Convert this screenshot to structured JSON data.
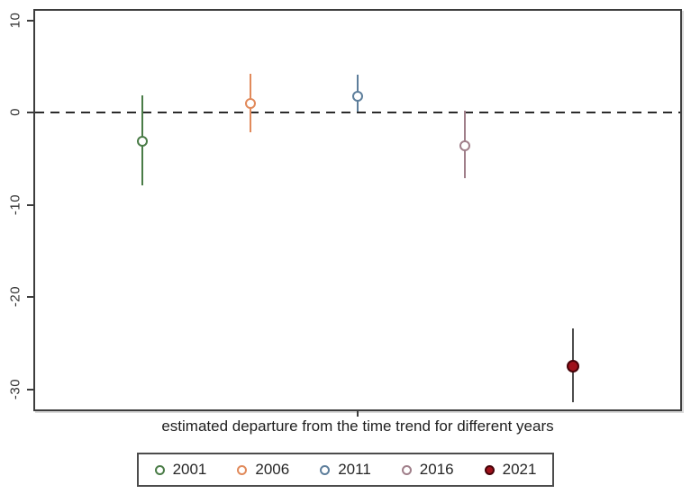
{
  "chart_data": {
    "type": "scatter",
    "subtype": "coefficient-plot",
    "title": "",
    "xlabel": "estimated departure from the time trend for different years",
    "ylabel": "",
    "ylim": [
      -32.2,
      11.0
    ],
    "yticks": [
      10,
      0,
      -10,
      -20,
      -30
    ],
    "reference_line": 0,
    "reference_line_style": "dashed-black",
    "grid": false,
    "legend_position": "bottom-center",
    "categories": [
      "2001",
      "2006",
      "2011",
      "2016",
      "2021"
    ],
    "series": [
      {
        "name": "2001",
        "slot": 1,
        "estimate": -3.1,
        "ci_low": -7.9,
        "ci_high": 1.9,
        "color": "#4a7c47",
        "line_color": "#4a7c47",
        "marker": "hollow-circle",
        "marker_edge": "#4a7c47",
        "marker_fill": "#ffffff"
      },
      {
        "name": "2006",
        "slot": 2,
        "estimate": 1.0,
        "ci_low": -2.1,
        "ci_high": 4.2,
        "color": "#e18a5b",
        "line_color": "#e18a5b",
        "marker": "hollow-circle",
        "marker_edge": "#e18a5b",
        "marker_fill": "#ffffff"
      },
      {
        "name": "2011",
        "slot": 3,
        "estimate": 1.8,
        "ci_low": 0.1,
        "ci_high": 4.1,
        "color": "#5d7e9b",
        "line_color": "#5d7e9b",
        "marker": "hollow-circle",
        "marker_edge": "#5d7e9b",
        "marker_fill": "#ffffff"
      },
      {
        "name": "2016",
        "slot": 4,
        "estimate": -3.6,
        "ci_low": -7.1,
        "ci_high": 0.2,
        "color": "#a07f8a",
        "line_color": "#a07f8a",
        "marker": "hollow-circle",
        "marker_edge": "#a07f8a",
        "marker_fill": "#ffffff"
      },
      {
        "name": "2021",
        "slot": 5,
        "estimate": -27.5,
        "ci_low": -31.4,
        "ci_high": -23.4,
        "color": "#9f111b",
        "line_color": "#4d4d4d",
        "marker": "filled-circle",
        "marker_edge": "#470309",
        "marker_fill": "#9f111b"
      }
    ]
  },
  "axis": {
    "x_title": "estimated departure from the time trend for different years"
  },
  "legend": {
    "items": [
      {
        "label": "2001"
      },
      {
        "label": "2006"
      },
      {
        "label": "2011"
      },
      {
        "label": "2016"
      },
      {
        "label": "2021"
      }
    ]
  }
}
